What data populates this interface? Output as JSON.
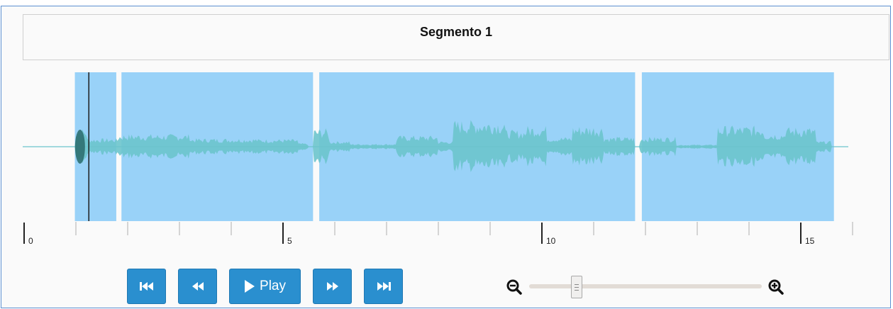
{
  "header": {
    "title": "Segmento 1"
  },
  "timeline": {
    "duration_seconds": 16.5,
    "labels": [
      "0",
      "5",
      "10",
      "15"
    ],
    "label_seconds": [
      0,
      5,
      10,
      15
    ],
    "cursor_seconds": 1.25,
    "regions": [
      {
        "start": 0.98,
        "end": 1.78
      },
      {
        "start": 1.88,
        "end": 5.58
      },
      {
        "start": 5.7,
        "end": 11.8
      },
      {
        "start": 11.93,
        "end": 15.64
      }
    ]
  },
  "controls": {
    "play_label": "Play",
    "zoom_level": 0.22
  },
  "colors": {
    "region_fill": "#99d2f8",
    "waveform": "#6cc4cc",
    "button": "#2a8fcf",
    "border": "#5b8fd1"
  },
  "icons": {
    "skip_back": "skip-to-start-icon",
    "rewind": "rewind-icon",
    "play": "play-icon",
    "forward": "fast-forward-icon",
    "skip_forward": "skip-to-end-icon",
    "zoom_out": "zoom-out-icon",
    "zoom_in": "zoom-in-icon"
  }
}
